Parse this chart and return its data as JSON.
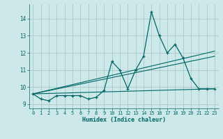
{
  "xlabel": "Humidex (Indice chaleur)",
  "bg_color": "#cce8e8",
  "grid_color": "#aac8c8",
  "line_color": "#006666",
  "xlim": [
    -0.5,
    23.5
  ],
  "ylim": [
    8.75,
    14.85
  ],
  "yticks": [
    9,
    10,
    11,
    12,
    13,
    14
  ],
  "xticks": [
    0,
    1,
    2,
    3,
    4,
    5,
    6,
    7,
    8,
    9,
    10,
    11,
    12,
    13,
    14,
    15,
    16,
    17,
    18,
    19,
    20,
    21,
    22,
    23
  ],
  "main_y": [
    9.6,
    9.3,
    9.2,
    9.5,
    9.5,
    9.5,
    9.5,
    9.3,
    9.4,
    9.8,
    11.5,
    11.0,
    9.9,
    11.0,
    11.8,
    14.4,
    13.0,
    12.0,
    12.5,
    11.7,
    10.5,
    9.9,
    9.9,
    9.9
  ],
  "trend1_x": [
    0,
    23
  ],
  "trend1_y": [
    9.6,
    9.9
  ],
  "trend2_x": [
    0,
    23
  ],
  "trend2_y": [
    9.6,
    11.8
  ],
  "trend3_x": [
    0,
    23
  ],
  "trend3_y": [
    9.6,
    12.1
  ]
}
